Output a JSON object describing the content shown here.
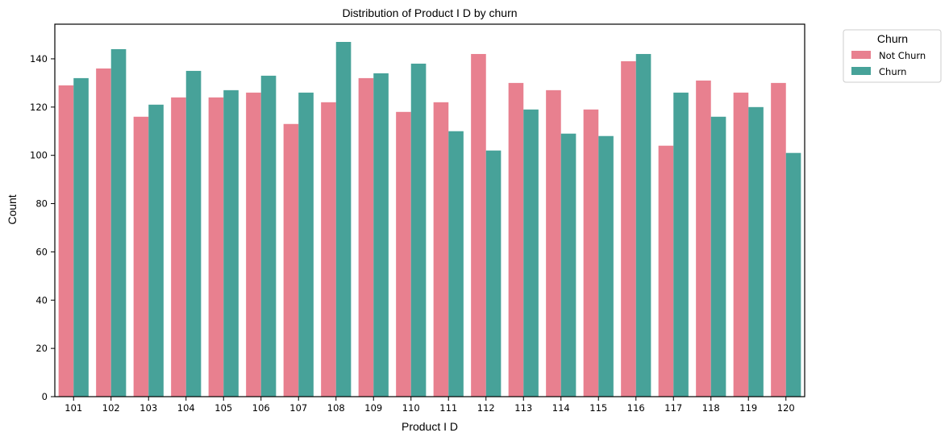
{
  "chart_data": {
    "type": "bar",
    "title": "Distribution of Product I D by churn",
    "xlabel": "Product I D",
    "ylabel": "Count",
    "categories": [
      "101",
      "102",
      "103",
      "104",
      "105",
      "106",
      "107",
      "108",
      "109",
      "110",
      "111",
      "112",
      "113",
      "114",
      "115",
      "116",
      "117",
      "118",
      "119",
      "120"
    ],
    "series": [
      {
        "name": "Not Churn",
        "color": "#e8808f",
        "values": [
          129,
          136,
          116,
          124,
          124,
          126,
          113,
          122,
          132,
          118,
          122,
          142,
          130,
          127,
          119,
          139,
          104,
          131,
          126,
          130
        ]
      },
      {
        "name": "Churn",
        "color": "#47a299",
        "values": [
          132,
          144,
          121,
          135,
          127,
          133,
          126,
          147,
          134,
          138,
          110,
          102,
          119,
          109,
          108,
          142,
          126,
          116,
          120,
          101
        ]
      }
    ],
    "ylim": [
      0,
      154.35
    ],
    "yticks": [
      0,
      20,
      40,
      60,
      80,
      100,
      120,
      140
    ],
    "grid": false,
    "legend": {
      "title": "Churn",
      "position": "outside-top-right"
    }
  }
}
